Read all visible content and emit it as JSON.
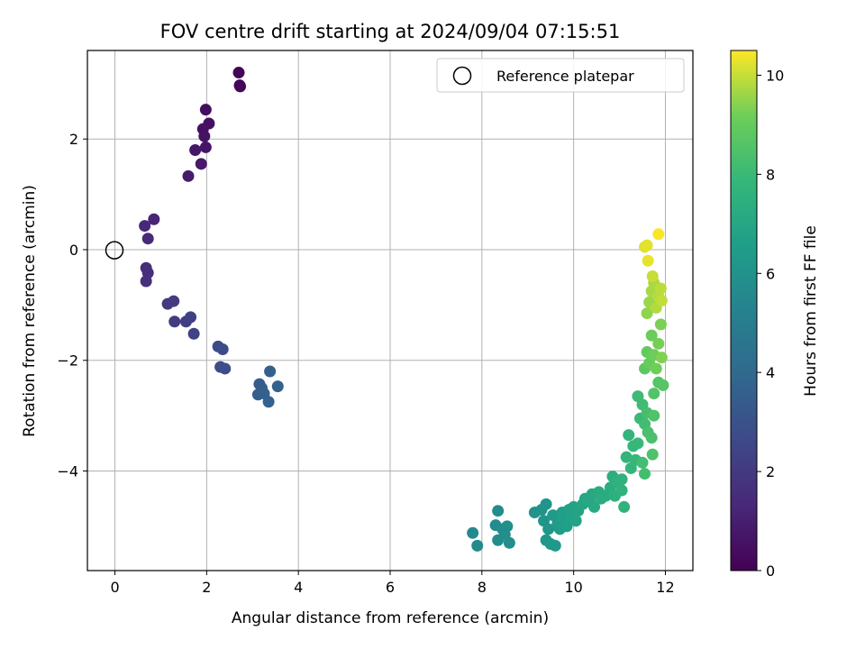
{
  "chart_data": {
    "type": "scatter",
    "title": "FOV centre drift starting at 2024/09/04 07:15:51",
    "xlabel": "Angular distance from reference (arcmin)",
    "ylabel": "Rotation from reference (arcmin)",
    "xlim": [
      -0.6,
      12.6
    ],
    "ylim": [
      -5.8,
      3.6
    ],
    "xticks": [
      0,
      2,
      4,
      6,
      8,
      10,
      12
    ],
    "yticks": [
      -4,
      -2,
      0,
      2
    ],
    "grid": true,
    "legend": {
      "placement": "top-right",
      "entries": [
        "Reference platepar"
      ]
    },
    "reference_point": {
      "x": 0,
      "y": 0,
      "label": "Reference platepar"
    },
    "colorbar": {
      "label": "Hours from first FF file",
      "colormap": "viridis",
      "range": [
        0,
        10.5
      ],
      "ticks": [
        0,
        2,
        4,
        6,
        8,
        10
      ]
    },
    "points": [
      {
        "x": 2.7,
        "y": 3.2,
        "c": 0.1
      },
      {
        "x": 2.72,
        "y": 2.97,
        "c": 0.15
      },
      {
        "x": 2.73,
        "y": 2.95,
        "c": 0.2
      },
      {
        "x": 1.98,
        "y": 2.53,
        "c": 0.4
      },
      {
        "x": 2.05,
        "y": 2.28,
        "c": 0.5
      },
      {
        "x": 1.92,
        "y": 2.18,
        "c": 0.55
      },
      {
        "x": 1.95,
        "y": 2.05,
        "c": 0.6
      },
      {
        "x": 1.98,
        "y": 1.85,
        "c": 0.65
      },
      {
        "x": 1.75,
        "y": 1.8,
        "c": 0.7
      },
      {
        "x": 1.88,
        "y": 1.55,
        "c": 0.8
      },
      {
        "x": 1.6,
        "y": 1.33,
        "c": 0.9
      },
      {
        "x": 0.85,
        "y": 0.55,
        "c": 1.2
      },
      {
        "x": 0.65,
        "y": 0.43,
        "c": 1.3
      },
      {
        "x": 0.72,
        "y": 0.2,
        "c": 1.4
      },
      {
        "x": 0.68,
        "y": -0.33,
        "c": 1.5
      },
      {
        "x": 0.72,
        "y": -0.42,
        "c": 1.55
      },
      {
        "x": 0.68,
        "y": -0.57,
        "c": 1.6
      },
      {
        "x": 1.15,
        "y": -0.98,
        "c": 2.0
      },
      {
        "x": 1.28,
        "y": -0.93,
        "c": 2.05
      },
      {
        "x": 1.3,
        "y": -1.3,
        "c": 2.1
      },
      {
        "x": 1.55,
        "y": -1.3,
        "c": 2.2
      },
      {
        "x": 1.65,
        "y": -1.22,
        "c": 2.3
      },
      {
        "x": 1.72,
        "y": -1.52,
        "c": 2.35
      },
      {
        "x": 2.25,
        "y": -1.75,
        "c": 2.7
      },
      {
        "x": 2.35,
        "y": -1.8,
        "c": 2.75
      },
      {
        "x": 2.3,
        "y": -2.12,
        "c": 2.8
      },
      {
        "x": 2.4,
        "y": -2.15,
        "c": 2.85
      },
      {
        "x": 3.15,
        "y": -2.43,
        "c": 3.4
      },
      {
        "x": 3.2,
        "y": -2.5,
        "c": 3.45
      },
      {
        "x": 3.12,
        "y": -2.62,
        "c": 3.5
      },
      {
        "x": 3.25,
        "y": -2.6,
        "c": 3.55
      },
      {
        "x": 3.38,
        "y": -2.2,
        "c": 3.6
      },
      {
        "x": 3.35,
        "y": -2.75,
        "c": 3.65
      },
      {
        "x": 3.55,
        "y": -2.47,
        "c": 3.7
      },
      {
        "x": 7.8,
        "y": -5.12,
        "c": 5.6
      },
      {
        "x": 7.9,
        "y": -5.35,
        "c": 5.65
      },
      {
        "x": 8.35,
        "y": -4.72,
        "c": 5.7
      },
      {
        "x": 8.3,
        "y": -4.98,
        "c": 5.72
      },
      {
        "x": 8.45,
        "y": -5.05,
        "c": 5.75
      },
      {
        "x": 8.35,
        "y": -5.25,
        "c": 5.78
      },
      {
        "x": 8.55,
        "y": -5.0,
        "c": 5.8
      },
      {
        "x": 8.6,
        "y": -5.3,
        "c": 5.83
      },
      {
        "x": 8.5,
        "y": -5.15,
        "c": 5.85
      },
      {
        "x": 9.15,
        "y": -4.75,
        "c": 6.0
      },
      {
        "x": 9.3,
        "y": -4.7,
        "c": 6.05
      },
      {
        "x": 9.4,
        "y": -4.6,
        "c": 6.1
      },
      {
        "x": 9.35,
        "y": -4.9,
        "c": 6.15
      },
      {
        "x": 9.45,
        "y": -5.05,
        "c": 6.2
      },
      {
        "x": 9.4,
        "y": -5.25,
        "c": 6.25
      },
      {
        "x": 9.5,
        "y": -5.32,
        "c": 6.3
      },
      {
        "x": 9.6,
        "y": -5.35,
        "c": 6.35
      },
      {
        "x": 9.55,
        "y": -4.8,
        "c": 6.4
      },
      {
        "x": 9.65,
        "y": -4.95,
        "c": 6.45
      },
      {
        "x": 9.7,
        "y": -5.05,
        "c": 6.5
      },
      {
        "x": 9.75,
        "y": -4.75,
        "c": 6.55
      },
      {
        "x": 9.8,
        "y": -4.85,
        "c": 6.6
      },
      {
        "x": 9.85,
        "y": -5.0,
        "c": 6.65
      },
      {
        "x": 9.9,
        "y": -4.7,
        "c": 6.7
      },
      {
        "x": 9.95,
        "y": -4.82,
        "c": 6.75
      },
      {
        "x": 10.0,
        "y": -4.65,
        "c": 6.8
      },
      {
        "x": 10.05,
        "y": -4.9,
        "c": 6.85
      },
      {
        "x": 10.1,
        "y": -4.72,
        "c": 6.9
      },
      {
        "x": 10.2,
        "y": -4.6,
        "c": 6.95
      },
      {
        "x": 10.25,
        "y": -4.5,
        "c": 7.0
      },
      {
        "x": 10.35,
        "y": -4.55,
        "c": 7.05
      },
      {
        "x": 10.4,
        "y": -4.42,
        "c": 7.1
      },
      {
        "x": 10.45,
        "y": -4.65,
        "c": 7.15
      },
      {
        "x": 10.55,
        "y": -4.38,
        "c": 7.2
      },
      {
        "x": 10.6,
        "y": -4.5,
        "c": 7.25
      },
      {
        "x": 10.7,
        "y": -4.45,
        "c": 7.3
      },
      {
        "x": 10.8,
        "y": -4.3,
        "c": 7.35
      },
      {
        "x": 10.85,
        "y": -4.1,
        "c": 7.4
      },
      {
        "x": 10.9,
        "y": -4.45,
        "c": 7.45
      },
      {
        "x": 10.95,
        "y": -4.2,
        "c": 7.5
      },
      {
        "x": 11.05,
        "y": -4.15,
        "c": 7.55
      },
      {
        "x": 11.1,
        "y": -4.65,
        "c": 7.6
      },
      {
        "x": 11.05,
        "y": -4.35,
        "c": 7.62
      },
      {
        "x": 11.15,
        "y": -3.75,
        "c": 7.7
      },
      {
        "x": 11.2,
        "y": -3.35,
        "c": 7.75
      },
      {
        "x": 11.25,
        "y": -3.95,
        "c": 7.8
      },
      {
        "x": 11.3,
        "y": -3.55,
        "c": 7.85
      },
      {
        "x": 11.35,
        "y": -3.8,
        "c": 7.9
      },
      {
        "x": 11.4,
        "y": -3.5,
        "c": 7.95
      },
      {
        "x": 11.45,
        "y": -3.05,
        "c": 8.0
      },
      {
        "x": 11.4,
        "y": -2.65,
        "c": 8.05
      },
      {
        "x": 11.5,
        "y": -2.8,
        "c": 8.1
      },
      {
        "x": 11.55,
        "y": -3.15,
        "c": 8.15
      },
      {
        "x": 11.5,
        "y": -3.85,
        "c": 8.2
      },
      {
        "x": 11.55,
        "y": -4.05,
        "c": 8.22
      },
      {
        "x": 11.6,
        "y": -2.95,
        "c": 8.3
      },
      {
        "x": 11.62,
        "y": -3.3,
        "c": 8.35
      },
      {
        "x": 11.7,
        "y": -3.4,
        "c": 8.4
      },
      {
        "x": 11.72,
        "y": -3.7,
        "c": 8.45
      },
      {
        "x": 11.75,
        "y": -3.0,
        "c": 8.5
      },
      {
        "x": 11.75,
        "y": -2.6,
        "c": 8.55
      },
      {
        "x": 11.85,
        "y": -2.4,
        "c": 8.6
      },
      {
        "x": 11.95,
        "y": -2.45,
        "c": 8.65
      },
      {
        "x": 11.55,
        "y": -2.15,
        "c": 8.8
      },
      {
        "x": 11.6,
        "y": -1.85,
        "c": 8.9
      },
      {
        "x": 11.65,
        "y": -2.05,
        "c": 9.0
      },
      {
        "x": 11.7,
        "y": -1.55,
        "c": 9.1
      },
      {
        "x": 11.75,
        "y": -1.9,
        "c": 9.15
      },
      {
        "x": 11.8,
        "y": -2.15,
        "c": 9.2
      },
      {
        "x": 11.85,
        "y": -1.7,
        "c": 9.25
      },
      {
        "x": 11.9,
        "y": -1.35,
        "c": 9.3
      },
      {
        "x": 11.92,
        "y": -1.95,
        "c": 9.35
      },
      {
        "x": 11.6,
        "y": -1.15,
        "c": 9.5
      },
      {
        "x": 11.65,
        "y": -0.95,
        "c": 9.6
      },
      {
        "x": 11.7,
        "y": -0.75,
        "c": 9.7
      },
      {
        "x": 11.75,
        "y": -0.6,
        "c": 9.75
      },
      {
        "x": 11.8,
        "y": -1.05,
        "c": 9.8
      },
      {
        "x": 11.85,
        "y": -0.85,
        "c": 9.85
      },
      {
        "x": 11.9,
        "y": -0.7,
        "c": 9.9
      },
      {
        "x": 11.92,
        "y": -0.92,
        "c": 9.95
      },
      {
        "x": 11.72,
        "y": -0.48,
        "c": 10.0
      },
      {
        "x": 11.55,
        "y": 0.05,
        "c": 10.2
      },
      {
        "x": 11.6,
        "y": 0.08,
        "c": 10.25
      },
      {
        "x": 11.62,
        "y": -0.2,
        "c": 10.3
      },
      {
        "x": 11.85,
        "y": 0.28,
        "c": 10.45
      }
    ]
  }
}
